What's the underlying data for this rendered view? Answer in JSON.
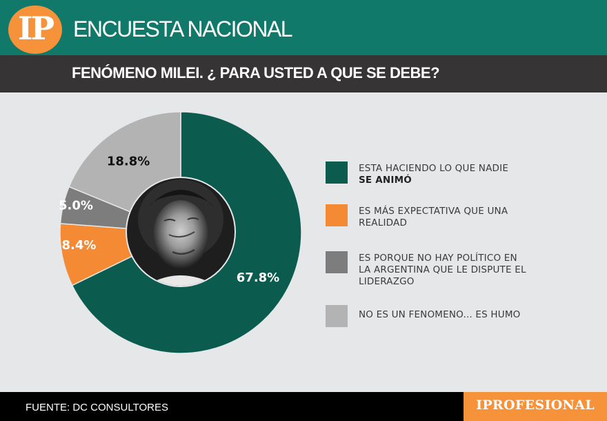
{
  "header": {
    "logo_text": "IP",
    "title": "ENCUESTA NACIONAL",
    "question": "FENÓMENO MILEI. ¿ PARA USTED A QUE SE DEBE?"
  },
  "footer": {
    "source": "FUENTE: DC CONSULTORES",
    "brand": "IPROFESIONAL"
  },
  "colors": {
    "header_green": "#10796a",
    "subheader_dark": "#363435",
    "background": "#e6e7e8",
    "accent_orange": "#f5923a"
  },
  "center_image": {
    "icon": "portrait-photo",
    "description": "Black-and-white portrait photo in donut center"
  },
  "chart_data": {
    "type": "pie",
    "variant": "donut",
    "title": "FENÓMENO MILEI. ¿ PARA USTED A QUE SE DEBE?",
    "categories": [
      "ESTA HACIENDO LO QUE NADIE SE ANIMÓ",
      "ES MÁS EXPECTATIVA QUE UNA REALIDAD",
      "ES PORQUE NO HAY POLÍTICO EN LA ARGENTINA QUE LE DISPUTE EL LIDERAZGO",
      "NO ES UN FENOMENO... ES HUMO"
    ],
    "values": [
      67.8,
      8.4,
      5.0,
      18.8
    ],
    "labels": [
      "67.8%",
      "8.4%",
      "5.0%",
      "18.8%"
    ],
    "colors": [
      "#0c5b4f",
      "#f48a33",
      "#7d7d7d",
      "#b3b3b3"
    ],
    "label_colors": [
      "#ffffff",
      "#ffffff",
      "#ffffff",
      "#111111"
    ],
    "start_angle": "12 o'clock, clockwise",
    "legend_position": "right",
    "source": "DC CONSULTORES"
  },
  "legend": [
    {
      "line1": "ESTA HACIENDO LO QUE NADIE",
      "line2_bold": "SE ANIMÓ",
      "color": "#0c5b4f"
    },
    {
      "line1": "ES MÁS EXPECTATIVA QUE UNA",
      "line2": "REALIDAD",
      "color": "#f48a33"
    },
    {
      "line1": "ES PORQUE NO HAY POLÍTICO EN",
      "line2": "LA ARGENTINA QUE LE DISPUTE EL",
      "line3": "LIDERAZGO",
      "color": "#7d7d7d"
    },
    {
      "line1": "NO ES UN FENOMENO... ES HUMO",
      "color": "#b3b3b3"
    }
  ]
}
